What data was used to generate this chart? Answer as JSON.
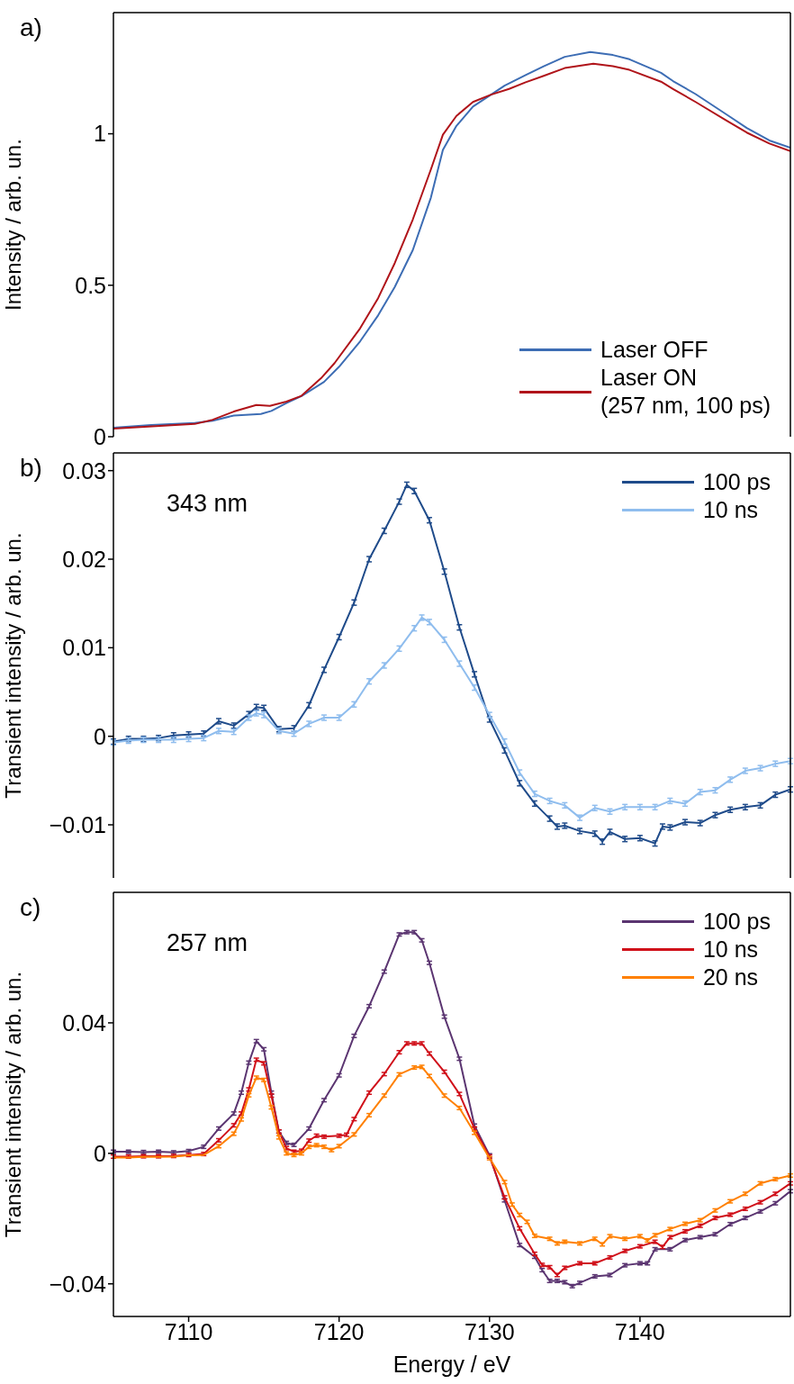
{
  "chart_data": [
    {
      "type": "line",
      "annotations": [
        "a)"
      ],
      "ylabel": "Intensity / arb. un.",
      "xlim": [
        7105,
        7150
      ],
      "xticks": [
        7110,
        7120,
        7130,
        7140
      ],
      "ylim": [
        0,
        1.4
      ],
      "yticks": [
        0,
        0.5,
        1
      ],
      "tick_labels": "y",
      "legend": "bottom right",
      "marker": "none",
      "line_style": "solid",
      "series": [
        {
          "name": "Laser OFF",
          "color": "#3d6db4",
          "x": [
            7105,
            7107.5,
            7110.4,
            7111.6,
            7113,
            7114.8,
            7115.5,
            7116.5,
            7117.5,
            7119,
            7120,
            7121.4,
            7122.6,
            7123.7,
            7124.9,
            7126.1,
            7126.9,
            7127.8,
            7128.9,
            7130.1,
            7131,
            7132.4,
            7133.6,
            7135,
            7136.7,
            7138.2,
            7139.3,
            7141.4,
            7142.2,
            7143.7,
            7145.9,
            7147.1,
            7148.6,
            7150
          ],
          "values": [
            0.03,
            0.039,
            0.045,
            0.053,
            0.07,
            0.075,
            0.085,
            0.111,
            0.134,
            0.181,
            0.231,
            0.315,
            0.401,
            0.494,
            0.616,
            0.789,
            0.947,
            1.026,
            1.09,
            1.129,
            1.159,
            1.194,
            1.223,
            1.254,
            1.27,
            1.26,
            1.246,
            1.201,
            1.174,
            1.131,
            1.059,
            1.019,
            0.978,
            0.954
          ]
        },
        {
          "name": "Laser ON (257 nm, 100 ps)",
          "color": "#b0141a",
          "x": [
            7105,
            7110.4,
            7111.6,
            7113,
            7114.5,
            7115.4,
            7116.5,
            7117.5,
            7118.8,
            7119.7,
            7121.4,
            7122.6,
            7123.7,
            7124.9,
            7126.1,
            7126.9,
            7127.8,
            7128.9,
            7130.1,
            7131.3,
            7132.4,
            7133.6,
            7135,
            7136.9,
            7138.2,
            7139.3,
            7141.4,
            7142.2,
            7143.7,
            7145.7,
            7147.1,
            7148.6,
            7150
          ],
          "values": [
            0.027,
            0.042,
            0.056,
            0.083,
            0.105,
            0.102,
            0.116,
            0.135,
            0.193,
            0.243,
            0.358,
            0.458,
            0.573,
            0.717,
            0.882,
            0.997,
            1.059,
            1.105,
            1.129,
            1.148,
            1.17,
            1.191,
            1.217,
            1.231,
            1.223,
            1.211,
            1.172,
            1.148,
            1.105,
            1.045,
            1.004,
            0.968,
            0.943
          ]
        }
      ]
    },
    {
      "type": "line",
      "annotations": [
        "b)",
        "343 nm"
      ],
      "ylabel": "Transient intensity / arb. un.",
      "xlim": [
        7105,
        7150
      ],
      "xticks": [
        7110,
        7120,
        7130,
        7140
      ],
      "ylim": [
        -0.016,
        0.032
      ],
      "yticks": [
        {
          "value": -0.01,
          "label": "−0.01"
        },
        0,
        0.01,
        0.02,
        0.03
      ],
      "tick_labels": "y",
      "legend": "top right",
      "marker": "none",
      "line_style": "solid",
      "series": [
        {
          "name": "100 ps",
          "color": "#1f4b8a",
          "x": [
            7105,
            7106,
            7107,
            7108,
            7109,
            7110,
            7111,
            7112,
            7113,
            7114,
            7114.5,
            7115,
            7116,
            7117,
            7118,
            7119,
            7120,
            7121,
            7122,
            7123,
            7124,
            7124.5,
            7125,
            7126,
            7127,
            7128,
            7129,
            7130,
            7131,
            7132,
            7133,
            7134,
            7134.5,
            7135,
            7136,
            7137,
            7137.5,
            7138,
            7139,
            7140,
            7141,
            7141.5,
            7142,
            7143,
            7144,
            7145,
            7146,
            7147,
            7148,
            7149,
            7150
          ],
          "values": [
            -0.0006,
            -0.0003,
            -0.0003,
            -0.0002,
            0.0001,
            0.0002,
            0.0003,
            0.0017,
            0.0012,
            0.0025,
            0.0033,
            0.0032,
            0.0008,
            0.0009,
            0.0035,
            0.0075,
            0.0112,
            0.0151,
            0.02,
            0.0232,
            0.0265,
            0.0284,
            0.0277,
            0.0244,
            0.0186,
            0.0123,
            0.007,
            0.0019,
            -0.0016,
            -0.0053,
            -0.0076,
            -0.0093,
            -0.0102,
            -0.0101,
            -0.0107,
            -0.011,
            -0.0119,
            -0.0108,
            -0.0116,
            -0.0115,
            -0.0121,
            -0.0102,
            -0.0103,
            -0.0097,
            -0.0098,
            -0.0089,
            -0.0083,
            -0.008,
            -0.0078,
            -0.0066,
            -0.006
          ],
          "errors": [
            0.0003,
            0.0003,
            0.0003,
            0.0003,
            0.0003,
            0.0003,
            0.0003,
            0.0003,
            0.0003,
            0.0003,
            0.0003,
            0.0003,
            0.0003,
            0.0003,
            0.0003,
            0.0003,
            0.0003,
            0.0003,
            0.0003,
            0.0003,
            0.0003,
            0.0003,
            0.0003,
            0.0003,
            0.0003,
            0.0003,
            0.0003,
            0.0003,
            0.0003,
            0.0003,
            0.0003,
            0.0003,
            0.0003,
            0.0003,
            0.0003,
            0.0003,
            0.0003,
            0.0003,
            0.0003,
            0.0003,
            0.0003,
            0.0003,
            0.0003,
            0.0003,
            0.0003,
            0.0003,
            0.0003,
            0.0003,
            0.0003,
            0.0003,
            0.0003
          ]
        },
        {
          "name": "10 ns",
          "color": "#8fbdee",
          "x": [
            7105,
            7106,
            7107,
            7108,
            7109,
            7110,
            7111,
            7112,
            7113,
            7114,
            7114.5,
            7115,
            7116,
            7117,
            7118,
            7119,
            7120,
            7121,
            7122,
            7123,
            7124,
            7125,
            7125.5,
            7126,
            7127,
            7128,
            7129,
            7130,
            7131,
            7132,
            7133,
            7134,
            7135,
            7136,
            7137,
            7138,
            7139,
            7140,
            7141,
            7142,
            7143,
            7144,
            7145,
            7146,
            7147,
            7148,
            7149,
            7150
          ],
          "values": [
            -0.0007,
            -0.0005,
            -0.0004,
            -0.0004,
            -0.0004,
            -0.0003,
            -0.0002,
            0.0006,
            0.0005,
            0.0021,
            0.0026,
            0.0024,
            0.0006,
            0.0003,
            0.0014,
            0.0021,
            0.0021,
            0.0036,
            0.0062,
            0.008,
            0.0099,
            0.0122,
            0.0134,
            0.0129,
            0.0109,
            0.0082,
            0.0055,
            0.0024,
            -0.0006,
            -0.0041,
            -0.0065,
            -0.0073,
            -0.0078,
            -0.0092,
            -0.0081,
            -0.0085,
            -0.008,
            -0.008,
            -0.008,
            -0.0073,
            -0.0076,
            -0.0063,
            -0.0061,
            -0.0049,
            -0.0039,
            -0.0036,
            -0.0031,
            -0.0028
          ],
          "errors": [
            0.0003,
            0.0003,
            0.0003,
            0.0003,
            0.0003,
            0.0003,
            0.0003,
            0.0003,
            0.0003,
            0.0003,
            0.0003,
            0.0003,
            0.0003,
            0.0003,
            0.0003,
            0.0003,
            0.0003,
            0.0003,
            0.0003,
            0.0003,
            0.0003,
            0.0003,
            0.0003,
            0.0003,
            0.0003,
            0.0003,
            0.0003,
            0.0003,
            0.0003,
            0.0003,
            0.0003,
            0.0003,
            0.0003,
            0.0003,
            0.0003,
            0.0003,
            0.0003,
            0.0003,
            0.0003,
            0.0003,
            0.0003,
            0.0003,
            0.0003,
            0.0003,
            0.0003,
            0.0003,
            0.0003,
            0.0003
          ]
        }
      ]
    },
    {
      "type": "line",
      "annotations": [
        "c)",
        "257 nm"
      ],
      "xlabel": "Energy / eV",
      "ylabel": "Transient intensity / arb. un.",
      "xlim": [
        7105,
        7150
      ],
      "xticks": [
        7110,
        7120,
        7130,
        7140
      ],
      "ylim": [
        -0.05,
        0.08
      ],
      "yticks": [
        {
          "value": -0.04,
          "label": "−0.04"
        },
        0,
        0.04
      ],
      "legend": "top right",
      "marker": "none",
      "line_style": "solid",
      "series": [
        {
          "name": "100 ps",
          "color": "#5b3571",
          "x": [
            7105,
            7106,
            7107,
            7108,
            7109,
            7110,
            7111,
            7112,
            7113,
            7113.5,
            7114,
            7114.5,
            7115,
            7115.5,
            7116,
            7116.5,
            7117,
            7118,
            7119,
            7120,
            7121,
            7122,
            7123,
            7124,
            7124.5,
            7125,
            7125.5,
            7126,
            7127,
            7128,
            7129,
            7130,
            7131,
            7132,
            7133,
            7133.5,
            7134,
            7134.5,
            7135,
            7135.5,
            7136,
            7137,
            7138,
            7139,
            7140,
            7140.5,
            7141,
            7142,
            7143,
            7144,
            7145,
            7146,
            7147,
            7148,
            7149,
            7150
          ],
          "values": [
            0.0005,
            0.0005,
            0.0004,
            0.0005,
            0.0003,
            0.0007,
            0.002,
            0.0076,
            0.0122,
            0.0186,
            0.0278,
            0.0344,
            0.0319,
            0.0186,
            0.0067,
            0.0032,
            0.0026,
            0.0076,
            0.0163,
            0.0239,
            0.036,
            0.0451,
            0.0557,
            0.0671,
            0.0678,
            0.0678,
            0.0653,
            0.0584,
            0.0419,
            0.029,
            0.0085,
            -0.0006,
            -0.0144,
            -0.0281,
            -0.0317,
            -0.0358,
            -0.0391,
            -0.0391,
            -0.0395,
            -0.0407,
            -0.0397,
            -0.0377,
            -0.0373,
            -0.0343,
            -0.0337,
            -0.0337,
            -0.0294,
            -0.0294,
            -0.0266,
            -0.0257,
            -0.0248,
            -0.0217,
            -0.0198,
            -0.0178,
            -0.0153,
            -0.0116
          ],
          "errors": [
            0.0005,
            0.0005,
            0.0005,
            0.0005,
            0.0005,
            0.0005,
            0.0005,
            0.0005,
            0.0005,
            0.0005,
            0.0005,
            0.0005,
            0.0005,
            0.0005,
            0.0005,
            0.0005,
            0.0005,
            0.0005,
            0.0005,
            0.0005,
            0.0005,
            0.0005,
            0.0005,
            0.0005,
            0.0005,
            0.0005,
            0.0005,
            0.0005,
            0.0005,
            0.0005,
            0.0005,
            0.0005,
            0.0005,
            0.0005,
            0.0005,
            0.0005,
            0.0005,
            0.0005,
            0.0005,
            0.0005,
            0.0005,
            0.0005,
            0.0005,
            0.0005,
            0.0005,
            0.0005,
            0.0005,
            0.0005,
            0.0005,
            0.0005,
            0.0005,
            0.0005,
            0.0005,
            0.0005,
            0.0005,
            0.0005
          ]
        },
        {
          "name": "10 ns",
          "color": "#d0101a",
          "x": [
            7105,
            7106,
            7107,
            7108,
            7109,
            7110,
            7111,
            7112,
            7113,
            7113.5,
            7114,
            7114.5,
            7115,
            7115.5,
            7116,
            7116.5,
            7117,
            7117.5,
            7118,
            7118.5,
            7119,
            7120,
            7120.5,
            7121,
            7122,
            7123,
            7124,
            7124.5,
            7125,
            7125.5,
            7126,
            7127,
            7128,
            7129,
            7130,
            7131,
            7132,
            7133,
            7133.5,
            7134,
            7134.5,
            7135,
            7136,
            7137,
            7138,
            7139,
            7140,
            7141,
            7141.5,
            7142,
            7143,
            7144,
            7145,
            7146,
            7147,
            7148,
            7149,
            7150
          ],
          "values": [
            -0.001,
            -0.001,
            -0.0009,
            -0.0009,
            -0.0008,
            -0.0005,
            -0.0002,
            0.004,
            0.0086,
            0.0122,
            0.0196,
            0.0287,
            0.0276,
            0.0177,
            0.0067,
            0.0016,
            0.0005,
            0.0008,
            0.0039,
            0.0054,
            0.0051,
            0.0054,
            0.0057,
            0.0105,
            0.0186,
            0.0243,
            0.031,
            0.0337,
            0.0337,
            0.0337,
            0.0306,
            0.025,
            0.0182,
            0.0076,
            -0.001,
            -0.0135,
            -0.023,
            -0.0308,
            -0.0342,
            -0.0349,
            -0.0373,
            -0.0351,
            -0.0337,
            -0.0337,
            -0.0319,
            -0.0299,
            -0.0285,
            -0.0271,
            -0.0287,
            -0.0257,
            -0.0239,
            -0.0222,
            -0.0198,
            -0.0188,
            -0.017,
            -0.015,
            -0.0124,
            -0.0092
          ],
          "errors": [
            0.0005,
            0.0005,
            0.0005,
            0.0005,
            0.0005,
            0.0005,
            0.0005,
            0.0005,
            0.0005,
            0.0005,
            0.0005,
            0.0005,
            0.0005,
            0.0005,
            0.0005,
            0.0005,
            0.0005,
            0.0005,
            0.0005,
            0.0005,
            0.0005,
            0.0005,
            0.0005,
            0.0005,
            0.0005,
            0.0005,
            0.0005,
            0.0005,
            0.0005,
            0.0005,
            0.0005,
            0.0005,
            0.0005,
            0.0005,
            0.0005,
            0.0005,
            0.0005,
            0.0005,
            0.0005,
            0.0005,
            0.0005,
            0.0005,
            0.0005,
            0.0005,
            0.0005,
            0.0005,
            0.0005,
            0.0005,
            0.0005,
            0.0005,
            0.0005,
            0.0005,
            0.0005,
            0.0005,
            0.0005,
            0.0005,
            0.0005,
            0.0005
          ]
        },
        {
          "name": "20 ns",
          "color": "#ff8000",
          "x": [
            7105,
            7106,
            7107,
            7108,
            7109,
            7110,
            7111,
            7112,
            7113,
            7113.5,
            7114,
            7114.5,
            7115,
            7115.5,
            7116,
            7116.5,
            7117,
            7117.5,
            7118,
            7118.5,
            7119,
            7119.5,
            7120,
            7121,
            7122,
            7123,
            7124,
            7125,
            7125.5,
            7126,
            7127,
            7128,
            7129,
            7130,
            7131,
            7131.5,
            7132,
            7132.5,
            7133,
            7134,
            7134.5,
            7135,
            7136,
            7137,
            7137.5,
            7138,
            7139,
            7140,
            7140.5,
            7141,
            7142,
            7143,
            7144,
            7145,
            7146,
            7147,
            7148,
            7149,
            7150
          ],
          "values": [
            -0.0013,
            -0.0013,
            -0.0011,
            -0.0011,
            -0.001,
            -0.0006,
            -0.0005,
            0.0022,
            0.006,
            0.0104,
            0.0178,
            0.0232,
            0.0225,
            0.0141,
            0.0049,
            0.0,
            -0.0005,
            0.0,
            0.002,
            0.0025,
            0.002,
            0.001,
            0.0022,
            0.0058,
            0.0117,
            0.0177,
            0.0242,
            0.0263,
            0.0265,
            0.0237,
            0.0177,
            0.0139,
            0.0063,
            -0.0015,
            -0.0088,
            -0.0157,
            -0.0189,
            -0.021,
            -0.0253,
            -0.0262,
            -0.0276,
            -0.0271,
            -0.0276,
            -0.0262,
            -0.0279,
            -0.0254,
            -0.0262,
            -0.0254,
            -0.0267,
            -0.0251,
            -0.0232,
            -0.0216,
            -0.0205,
            -0.0175,
            -0.0147,
            -0.0124,
            -0.0092,
            -0.0079,
            -0.0068
          ],
          "errors": [
            null,
            null,
            null,
            null,
            null,
            null,
            null,
            0.0005,
            0.0005,
            0.0005,
            0.0005,
            0.0005,
            0.0005,
            0.0005,
            0.0005,
            0.0005,
            0.0005,
            0.0005,
            0.0005,
            0.0005,
            0.0005,
            0.0005,
            0.0005,
            0.0005,
            0.0005,
            0.0005,
            0.0005,
            0.0005,
            0.0005,
            0.0005,
            0.0005,
            0.0005,
            0.0005,
            0.0005,
            0.0005,
            0.0005,
            0.0005,
            0.0005,
            0.0005,
            0.0005,
            0.0005,
            0.0005,
            0.0005,
            0.0005,
            0.0005,
            0.0005,
            0.0005,
            0.0005,
            0.0005,
            0.0005,
            0.0005,
            0.0005,
            0.0005,
            0.0005,
            0.0005,
            0.0005,
            0.0005,
            0.0005,
            0.0005
          ]
        }
      ]
    }
  ]
}
